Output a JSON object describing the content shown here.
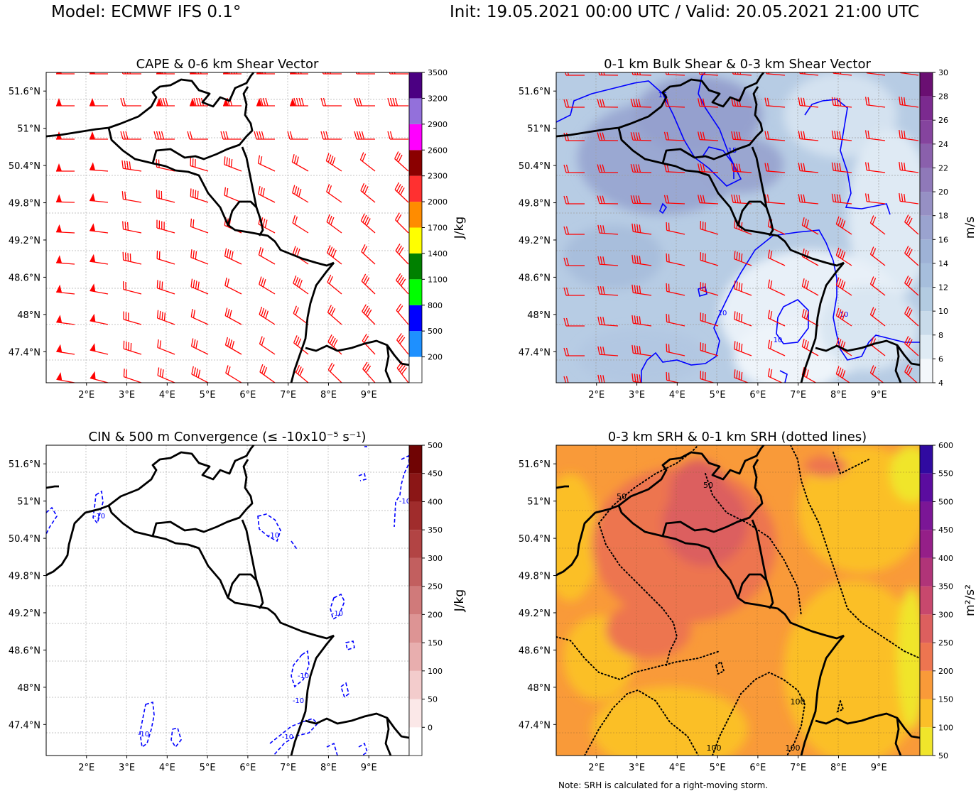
{
  "header": {
    "model": "Model: ECMWF IFS 0.1°",
    "valid": "Init: 19.05.2021 00:00 UTC / Valid: 20.05.2021 21:00 UTC"
  },
  "footnote": "Note: SRH is calculated for a right-moving storm.",
  "colors": {
    "barbs": "#ff0000",
    "borders": "#000000",
    "conv_contours": "#0000ff",
    "shear_contours": "#0000ff"
  },
  "chart_data": [
    {
      "id": "cape",
      "type": "heatmap",
      "title": "CAPE & 0-6 km Shear Vector",
      "overlay": "wind barbs (0-6 km shear vector)",
      "x_ticks": [
        "2°E",
        "3°E",
        "4°E",
        "5°E",
        "6°E",
        "7°E",
        "8°E",
        "9°E"
      ],
      "x_tick_values": [
        2,
        3,
        4,
        5,
        6,
        7,
        8,
        9
      ],
      "y_ticks": [
        "51.6°N",
        "51°N",
        "50.4°N",
        "49.8°N",
        "49.2°N",
        "48.6°N",
        "48°N",
        "47.4°N"
      ],
      "y_tick_values": [
        51.6,
        51.0,
        50.4,
        49.8,
        49.2,
        48.6,
        48.0,
        47.4
      ],
      "lon_range": [
        1.0,
        10.0
      ],
      "lat_range": [
        46.9,
        51.9
      ],
      "colorbar": {
        "label": "J/kg",
        "range": [
          -100,
          3500
        ],
        "ticks": [
          200,
          500,
          800,
          1100,
          1400,
          1700,
          2000,
          2300,
          2600,
          2900,
          3200,
          3500
        ],
        "levels": [
          -100,
          200,
          500,
          800,
          1100,
          1400,
          1700,
          2000,
          2300,
          2600,
          2900,
          3200,
          3500
        ],
        "colors": [
          "#ffffff",
          "#1e90ff",
          "#0000ff",
          "#00ff00",
          "#008000",
          "#ffff00",
          "#ff8c00",
          "#ff3030",
          "#8b0000",
          "#ff00ff",
          "#9370db",
          "#4b0082"
        ]
      },
      "field_note": "CAPE below 200 J/kg across the domain"
    },
    {
      "id": "shear01",
      "type": "heatmap",
      "title": "0-1 km Bulk Shear & 0-3 km Shear Vector",
      "overlay": "wind barbs (0-3 km shear vector) and 0-1 km bulk shear contours",
      "x_ticks": [
        "2°E",
        "3°E",
        "4°E",
        "5°E",
        "6°E",
        "7°E",
        "8°E",
        "9°E"
      ],
      "x_tick_values": [
        2,
        3,
        4,
        5,
        6,
        7,
        8,
        9
      ],
      "y_ticks": [
        "51.6°N",
        "51°N",
        "50.4°N",
        "49.8°N",
        "49.2°N",
        "48.6°N",
        "48°N",
        "47.4°N"
      ],
      "y_tick_values": [
        51.6,
        51.0,
        50.4,
        49.8,
        49.2,
        48.6,
        48.0,
        47.4
      ],
      "lon_range": [
        1.0,
        10.0
      ],
      "lat_range": [
        46.9,
        51.9
      ],
      "colorbar": {
        "label": "m/s",
        "range": [
          4,
          30
        ],
        "ticks": [
          4,
          6,
          8,
          10,
          12,
          14,
          16,
          18,
          20,
          22,
          24,
          26,
          28,
          30
        ],
        "levels": [
          4,
          6,
          8,
          10,
          12,
          14,
          16,
          18,
          20,
          22,
          24,
          26,
          28,
          30
        ],
        "colors": [
          "#f3f7fb",
          "#dfebf4",
          "#c9dbea",
          "#b3cbe1",
          "#a6bedc",
          "#9eb2d6",
          "#9aa3cf",
          "#9690c4",
          "#8f79b9",
          "#8a60ac",
          "#85449e",
          "#7b2a8f",
          "#6a0f72"
        ]
      },
      "contour_labels": [
        "15",
        "15",
        "10",
        "10",
        "10"
      ]
    },
    {
      "id": "cin",
      "type": "heatmap",
      "title": "CIN & 500 m Convergence (≤ -10x10⁻⁵ s⁻¹)",
      "overlay": "dashed convergence contours at -10",
      "x_ticks": [
        "2°E",
        "3°E",
        "4°E",
        "5°E",
        "6°E",
        "7°E",
        "8°E",
        "9°E"
      ],
      "x_tick_values": [
        2,
        3,
        4,
        5,
        6,
        7,
        8,
        9
      ],
      "y_ticks": [
        "51.6°N",
        "51°N",
        "50.4°N",
        "49.8°N",
        "49.2°N",
        "48.6°N",
        "48°N",
        "47.4°N"
      ],
      "y_tick_values": [
        51.6,
        51.0,
        50.4,
        49.8,
        49.2,
        48.6,
        48.0,
        47.4
      ],
      "lon_range": [
        1.0,
        10.0
      ],
      "lat_range": [
        46.9,
        51.9
      ],
      "colorbar": {
        "label": "J/kg",
        "range": [
          -50,
          500
        ],
        "ticks": [
          0,
          50,
          100,
          150,
          200,
          250,
          300,
          350,
          400,
          450,
          500
        ],
        "levels": [
          -50,
          0,
          50,
          100,
          150,
          200,
          250,
          300,
          350,
          400,
          450,
          500
        ],
        "colors": [
          "#ffffff",
          "#fbe8e8",
          "#f3cccc",
          "#e8aeae",
          "#dd9494",
          "#d07a7a",
          "#c25f5f",
          "#b24444",
          "#a02c2c",
          "#8b1616",
          "#700404"
        ]
      },
      "contour_labels": [
        "-10",
        "-10",
        "-10",
        "-10",
        "-10",
        "-10",
        "-10",
        "-10",
        "-10",
        "-10"
      ]
    },
    {
      "id": "srh",
      "type": "heatmap",
      "title": "0-3 km SRH & 0-1 km SRH (dotted lines)",
      "overlay": "dotted 0-1 km SRH contours",
      "x_ticks": [
        "2°E",
        "3°E",
        "4°E",
        "5°E",
        "6°E",
        "7°E",
        "8°E",
        "9°E"
      ],
      "x_tick_values": [
        2,
        3,
        4,
        5,
        6,
        7,
        8,
        9
      ],
      "y_ticks": [
        "51.6°N",
        "51°N",
        "50.4°N",
        "49.8°N",
        "49.2°N",
        "48.6°N",
        "48°N",
        "47.4°N"
      ],
      "y_tick_values": [
        51.6,
        51.0,
        50.4,
        49.8,
        49.2,
        48.6,
        48.0,
        47.4
      ],
      "lon_range": [
        1.0,
        10.0
      ],
      "lat_range": [
        46.9,
        51.9
      ],
      "colorbar": {
        "label": "m²/s²",
        "range": [
          50,
          600
        ],
        "ticks": [
          50,
          100,
          150,
          200,
          250,
          300,
          350,
          400,
          450,
          500,
          550,
          600
        ],
        "levels": [
          50,
          100,
          150,
          200,
          250,
          300,
          350,
          400,
          450,
          500,
          550,
          600
        ],
        "colors": [
          "#f0e52b",
          "#fbbf28",
          "#f99a39",
          "#ed7550",
          "#dc5f5e",
          "#c8486d",
          "#b03478",
          "#951f88",
          "#7b1696",
          "#5b0c9f",
          "#300aa0"
        ]
      },
      "contour_labels": [
        "50",
        "50",
        "100",
        "100",
        "100"
      ]
    }
  ]
}
